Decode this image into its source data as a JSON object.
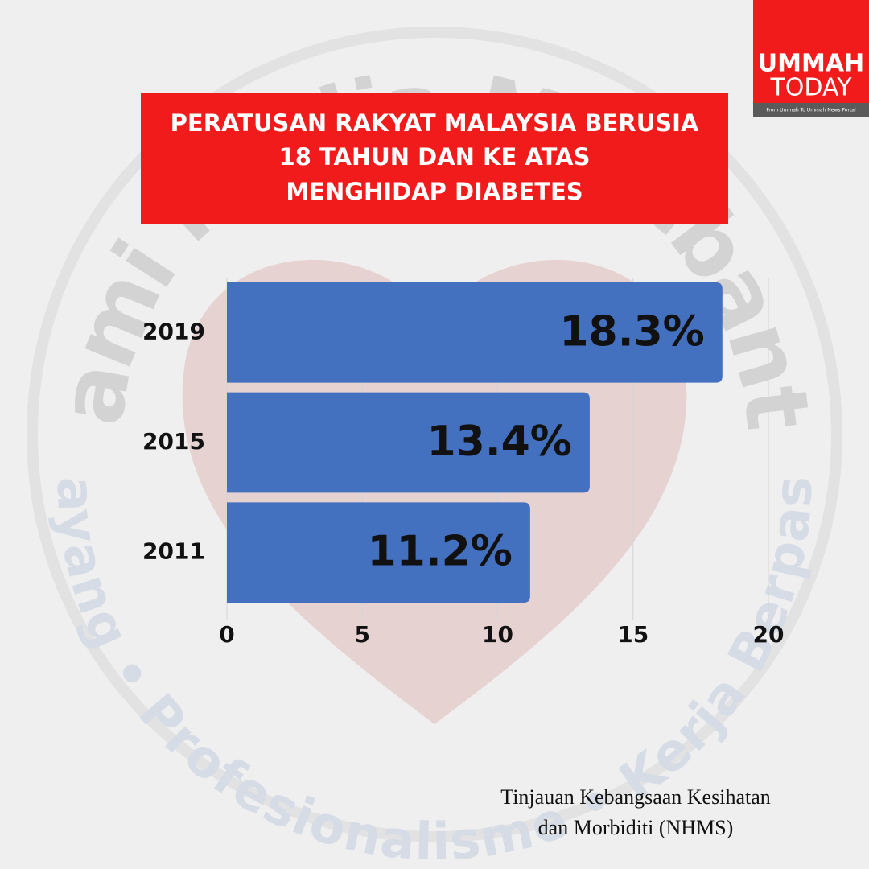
{
  "chart_data": {
    "type": "bar",
    "orientation": "horizontal",
    "title": [
      "PERATUSAN RAKYAT MALAYSIA BERUSIA",
      "18 TAHUN DAN KE ATAS",
      "MENGHIDAP DIABETES"
    ],
    "categories": [
      "2019",
      "2015",
      "2011"
    ],
    "values": [
      18.3,
      13.4,
      11.2
    ],
    "value_labels": [
      "18.3%",
      "13.4%",
      "11.2%"
    ],
    "color": "#4470c0",
    "xlim": [
      0,
      20
    ],
    "xticks": [
      0,
      5,
      10,
      15,
      20
    ],
    "grid": true
  },
  "source": [
    "Tinjauan Kebangsaan Kesihatan",
    "dan Morbiditi (NHMS)"
  ],
  "logo": {
    "line1": "UMMAH",
    "line2": "TODAY",
    "tagline": "From Ummah To Ummah News Portal"
  },
  "watermark": {
    "top": "Kami Media Membantu",
    "bottom": "Penyayang • Profesionalisme • Kerja Berpasukan"
  }
}
